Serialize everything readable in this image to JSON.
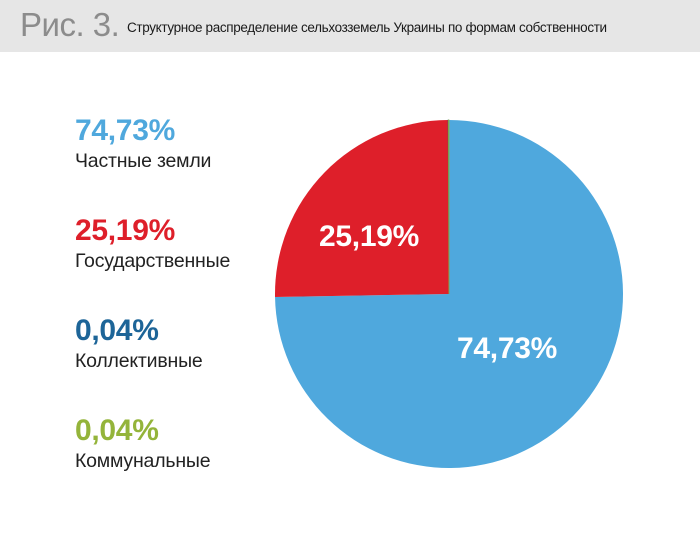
{
  "header": {
    "figure_number": "Рис. 3.",
    "title": "Структурное распределение сельхозземель Украины по формам собственности"
  },
  "legend": [
    {
      "value": "74,73%",
      "label": "Частные земли",
      "color": "#4fa8dd"
    },
    {
      "value": "25,19%",
      "label": "Государственные",
      "color": "#de1f2a"
    },
    {
      "value": "0,04%",
      "label": "Коллективные",
      "color": "#1d6598"
    },
    {
      "value": "0,04%",
      "label": "Коммунальные",
      "color": "#94b43a"
    }
  ],
  "pie_labels": [
    {
      "text": "74,73%"
    },
    {
      "text": "25,19%"
    }
  ],
  "chart_data": {
    "type": "pie",
    "title": "Структурное распределение сельхозземель Украины по формам собственности",
    "figure_label": "Рис. 3.",
    "categories": [
      "Частные земли",
      "Государственные",
      "Коллективные",
      "Коммунальные"
    ],
    "values": [
      74.73,
      25.19,
      0.04,
      0.04
    ],
    "value_labels": [
      "74,73%",
      "25,19%",
      "0,04%",
      "0,04%"
    ],
    "colors": [
      "#4fa8dd",
      "#de1f2a",
      "#1d6598",
      "#94b43a"
    ],
    "unit": "%",
    "start_angle_deg": 0,
    "direction": "clockwise",
    "legend_position": "left",
    "in_slice_labels": [
      "74,73%",
      "25,19%"
    ]
  }
}
